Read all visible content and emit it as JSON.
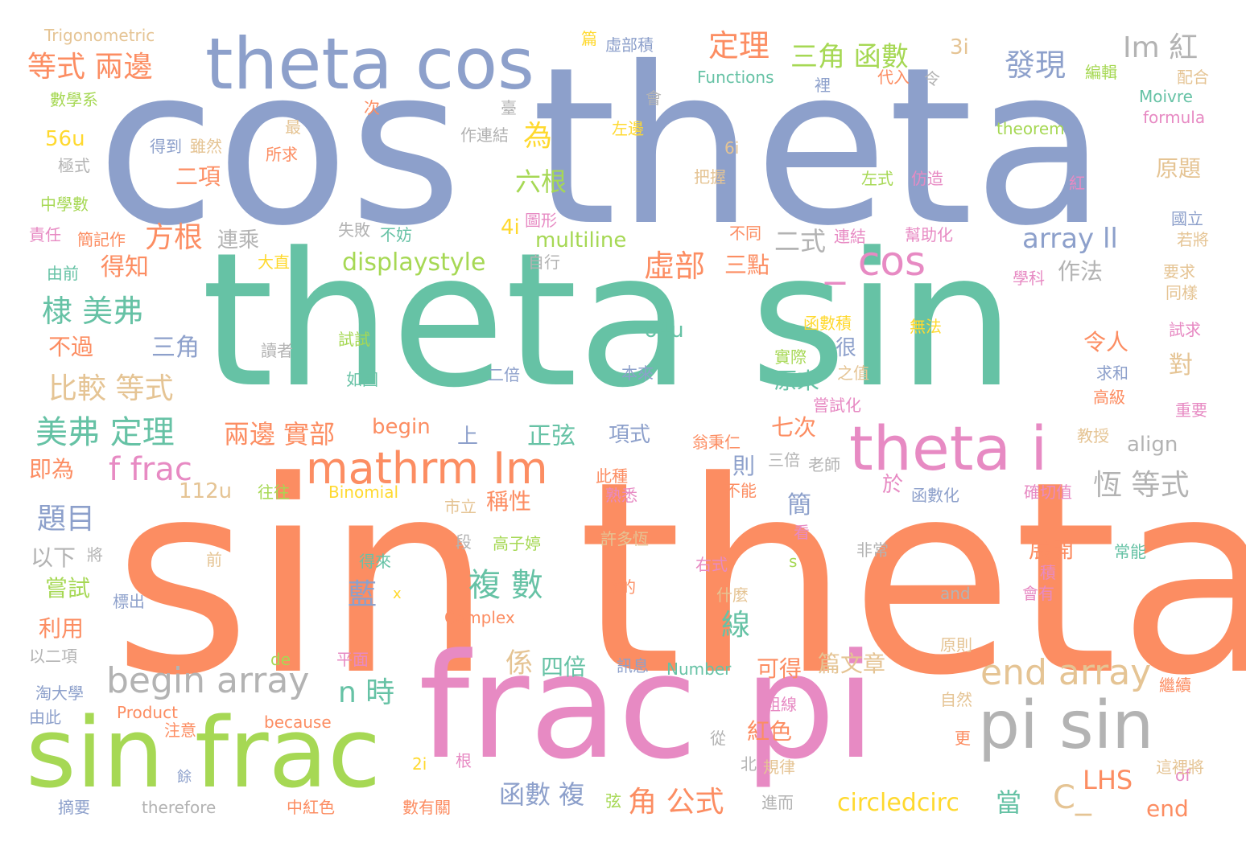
{
  "palette": {
    "orange": "#fc8d62",
    "blue": "#8da0cb",
    "green": "#66c2a5",
    "pink": "#e78ac3",
    "lime": "#a6d854",
    "yellow": "#ffd92f",
    "tan": "#e5c494",
    "gray": "#b3b3b3"
  },
  "words": [
    "sin theta",
    "cos theta",
    "theta sin",
    "frac pi",
    "sin frac",
    "theta cos",
    "pi sin",
    "theta i",
    "mathrm Im",
    "begin array",
    "end array",
    "_ cos",
    "美弗 定理",
    "棣 美弗",
    "等式 兩邊",
    "發現",
    "定理",
    "三角 函數",
    "Im 紅",
    "比較 等式",
    "複 數",
    "f frac",
    "恆 等式",
    "角 公式",
    "兩邊 實部",
    "虛部",
    "方根",
    "得知",
    "為",
    "六根",
    "displaystyle",
    "array ll",
    "題目",
    "n 時",
    "函數 複",
    "circledcirc",
    "當",
    "LHS",
    "C_",
    "end",
    "係",
    "四倍",
    "三角",
    "正弦",
    "multiline",
    "64u",
    "56u",
    "112u",
    "4i",
    "3i",
    "6i",
    "2i",
    "Trigonometric",
    "Functions",
    "Moivre",
    "theorem",
    "formula",
    "Binomial",
    "Complex",
    "Number",
    "Product",
    "because",
    "therefore",
    "de",
    "and",
    "of",
    "align",
    "begin",
    "x",
    "s",
    "篇",
    "虛部積",
    "數學系",
    "得到",
    "雖然",
    "所求",
    "作連結",
    "二項",
    "極式",
    "中學數",
    "責任",
    "簡記作",
    "由前",
    "大直",
    "失敗",
    "不妨",
    "圖形",
    "連乘",
    "二式",
    "三點",
    "自行",
    "作法",
    "原題",
    "國立",
    "若將",
    "要求",
    "同樣",
    "試求",
    "求和",
    "高級",
    "重要",
    "教授",
    "確切值",
    "函數化",
    "常能",
    "會有",
    "積",
    "展開",
    "原則",
    "繼續",
    "這裡將",
    "自然",
    "更",
    "粗線",
    "規律",
    "北",
    "進而",
    "數有關",
    "中紅色",
    "摘要",
    "餘",
    "注意",
    "由此",
    "淘大學",
    "以二項",
    "利用",
    "標出",
    "嘗試",
    "以下",
    "將",
    "前",
    "即為",
    "上",
    "往往",
    "市立",
    "段",
    "高子婷",
    "許多恆",
    "得來",
    "平面",
    "訊息",
    "不能",
    "右式",
    "非常",
    "看",
    "什麼",
    "數的",
    "熟悉",
    "此種",
    "翁秉仁",
    "三倍",
    "老師",
    "簡",
    "於",
    "則",
    "七次",
    "項式",
    "本來",
    "二倍",
    "如圖",
    "試試",
    "讀者",
    "函數積",
    "無法",
    "實際",
    "之值",
    "原來",
    "很",
    "嘗試化",
    "令人",
    "對",
    "不過",
    "令",
    "代入",
    "裡",
    "編輯",
    "配合",
    "學科",
    "紅",
    "左式",
    "仿造",
    "連結",
    "幫助化",
    "不同",
    "把握",
    "最",
    "次",
    "臺",
    "會",
    "左邊",
    "可得",
    "篇文章",
    "紅色",
    "從",
    "根",
    "藍",
    "線",
    "稱性",
    "弦"
  ]
}
